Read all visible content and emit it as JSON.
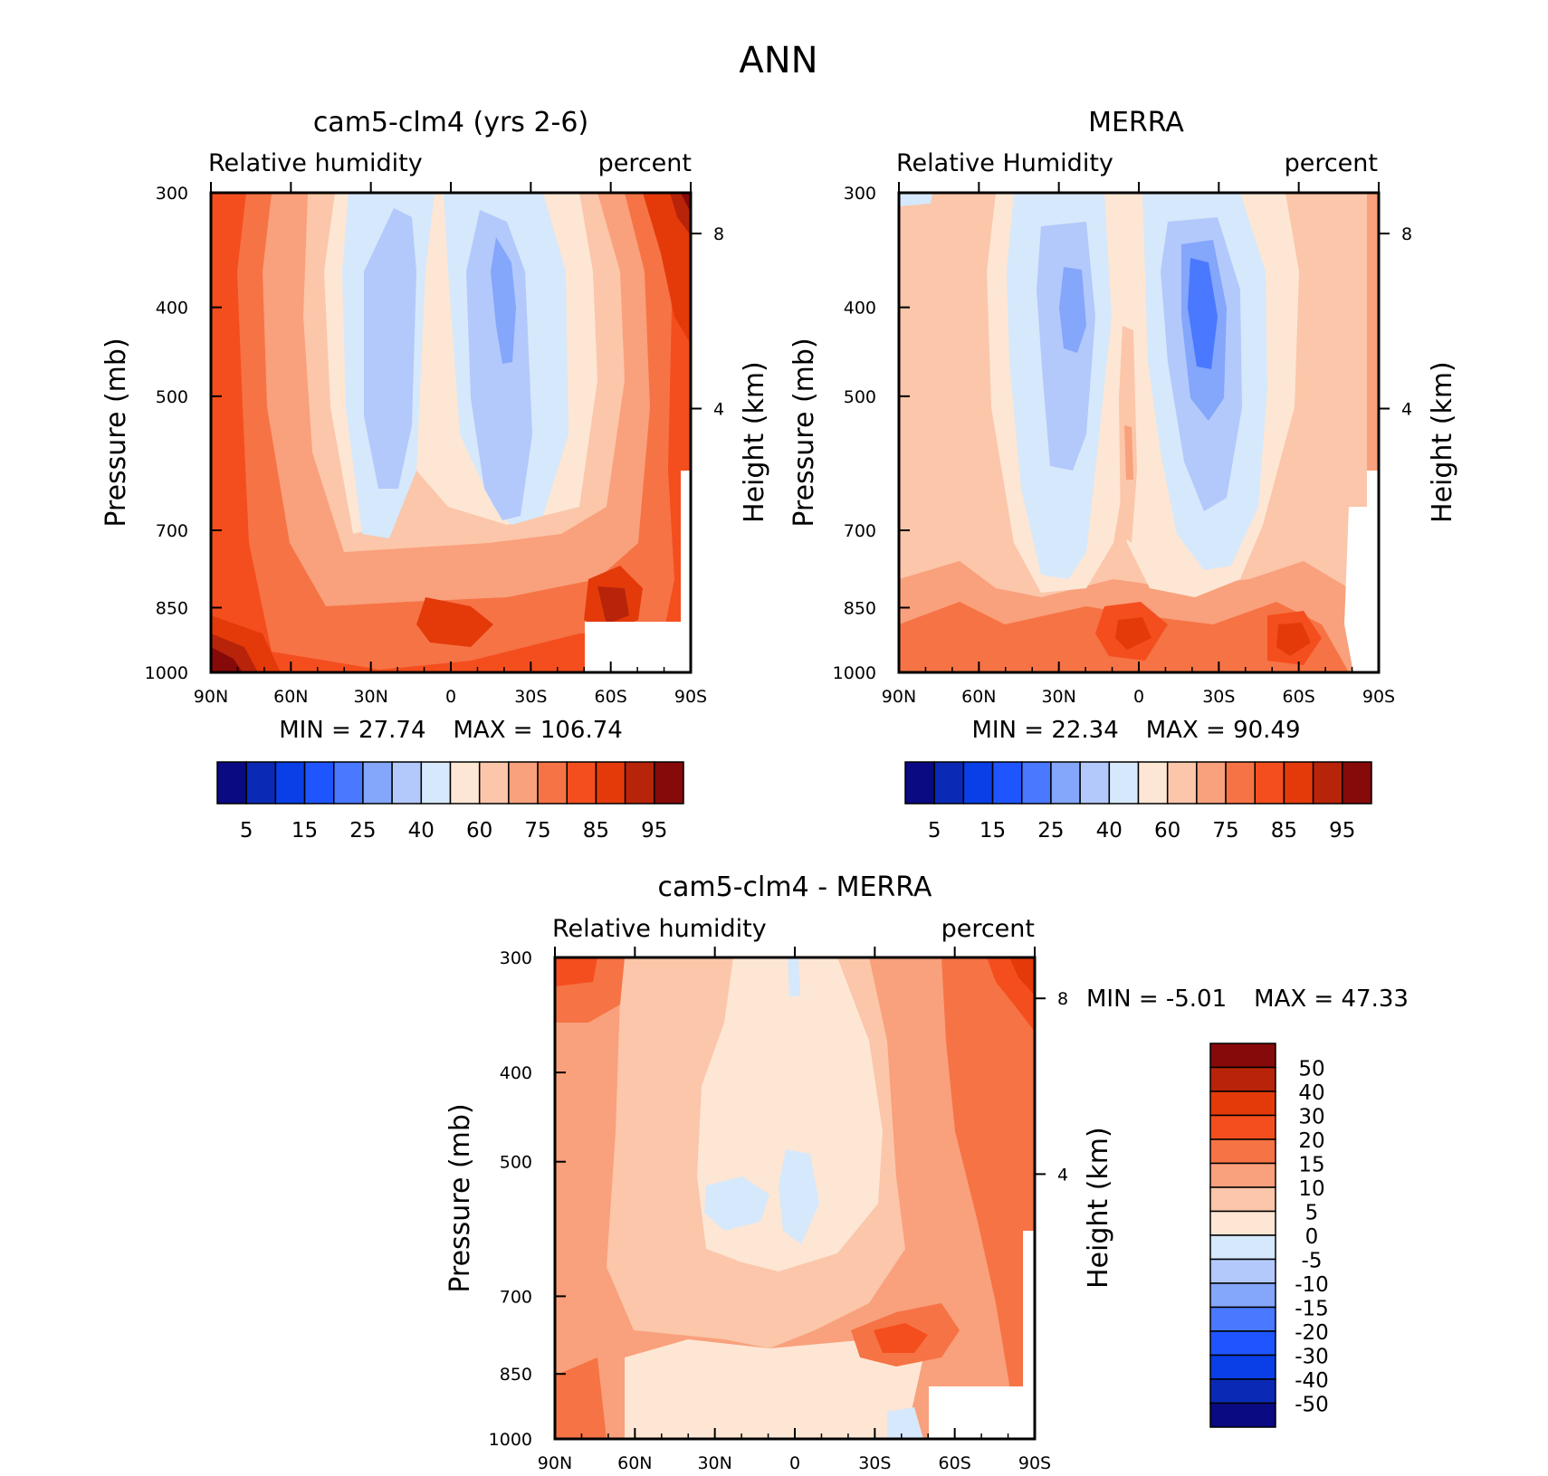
{
  "figure_title": "ANN",
  "colors": {
    "full_scale": [
      "#0a0a82",
      "#0a2ab5",
      "#0a3ee6",
      "#1f55ff",
      "#4a78ff",
      "#84a6fb",
      "#b3c9fb",
      "#d6e8fb",
      "#fde6d4",
      "#fbc6a9",
      "#f9a07c",
      "#f67345",
      "#f44e1f",
      "#e43a0a",
      "#b8240a",
      "#860a0a"
    ],
    "diff_scale": [
      "#0a0a82",
      "#0a2ab5",
      "#0a3ee6",
      "#1f55ff",
      "#4a78ff",
      "#84a6fb",
      "#b3c9fb",
      "#d6e8fb",
      "#fde6d4",
      "#fbc6a9",
      "#f9a07c",
      "#f67345",
      "#f44e1f",
      "#e43a0a",
      "#b8240a",
      "#860a0a"
    ]
  },
  "panels": [
    {
      "title": "cam5-clm4 (yrs 2-6)",
      "left_label": "Relative humidity",
      "right_label": "percent",
      "ylabel": "Pressure (mb)",
      "y2label": "Height (km)",
      "min_text": "MIN =   27.74",
      "max_text": "MAX = 106.74"
    },
    {
      "title": "MERRA",
      "left_label": "Relative Humidity",
      "right_label": "percent",
      "ylabel": "Pressure (mb)",
      "y2label": "Height (km)",
      "min_text": "MIN =   22.34",
      "max_text": "MAX =   90.49"
    },
    {
      "title": "cam5-clm4 - MERRA",
      "left_label": "Relative humidity",
      "right_label": "percent",
      "ylabel": "Pressure (mb)",
      "y2label": "Height (km)",
      "min_text": "MIN =   -5.01",
      "max_text": "MAX =   47.33"
    }
  ],
  "chart_data": [
    {
      "type": "heatmap",
      "title": "cam5-clm4 (yrs 2-6)",
      "xlabel": "",
      "ylabel": "Pressure (mb)",
      "y2label": "Height (km)",
      "x_ticks": [
        "90N",
        "60N",
        "30N",
        "0",
        "30S",
        "60S",
        "90S"
      ],
      "y_ticks": [
        "300",
        "400",
        "500",
        "700",
        "850",
        "1000"
      ],
      "y2_ticks": [
        "8",
        "4"
      ],
      "min": 27.74,
      "max": 106.74,
      "colorbar_ticks": [
        "5",
        "15",
        "25",
        "40",
        "60",
        "75",
        "85",
        "95"
      ]
    },
    {
      "type": "heatmap",
      "title": "MERRA",
      "xlabel": "",
      "ylabel": "Pressure (mb)",
      "y2label": "Height (km)",
      "x_ticks": [
        "90N",
        "60N",
        "30N",
        "0",
        "30S",
        "60S",
        "90S"
      ],
      "y_ticks": [
        "300",
        "400",
        "500",
        "700",
        "850",
        "1000"
      ],
      "y2_ticks": [
        "8",
        "4"
      ],
      "min": 22.34,
      "max": 90.49,
      "colorbar_ticks": [
        "5",
        "15",
        "25",
        "40",
        "60",
        "75",
        "85",
        "95"
      ]
    },
    {
      "type": "heatmap",
      "title": "cam5-clm4 - MERRA",
      "xlabel": "",
      "ylabel": "Pressure (mb)",
      "y2label": "Height (km)",
      "x_ticks": [
        "90N",
        "60N",
        "30N",
        "0",
        "30S",
        "60S",
        "90S"
      ],
      "y_ticks": [
        "300",
        "400",
        "500",
        "700",
        "850",
        "1000"
      ],
      "y2_ticks": [
        "8",
        "4"
      ],
      "min": -5.01,
      "max": 47.33,
      "colorbar_ticks": [
        "50",
        "40",
        "30",
        "20",
        "15",
        "10",
        "5",
        "0",
        "-5",
        "-10",
        "-15",
        "-20",
        "-30",
        "-40",
        "-50"
      ]
    }
  ]
}
